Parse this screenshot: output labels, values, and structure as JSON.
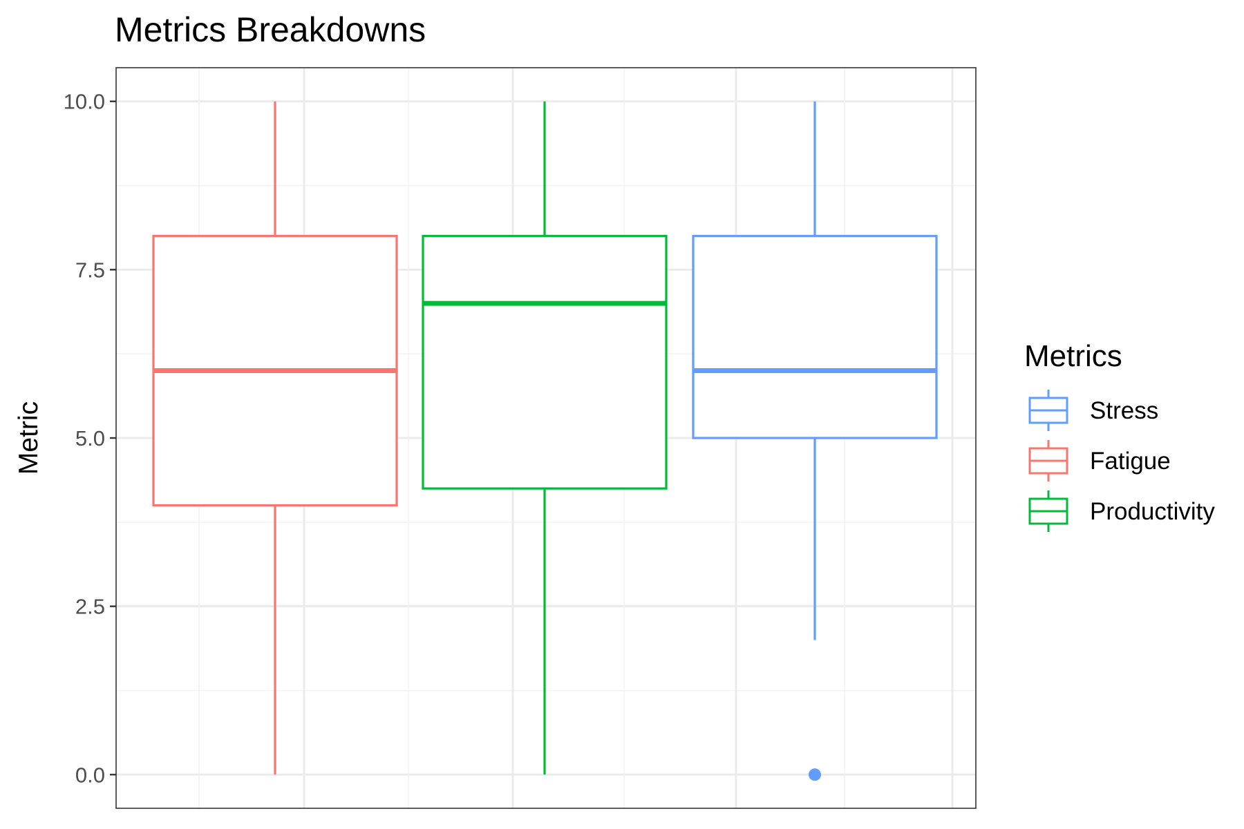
{
  "chart_data": {
    "type": "box",
    "title": "Metrics Breakdowns",
    "xlabel": "",
    "ylabel": "Metric",
    "ylim": [
      -0.5,
      10.5
    ],
    "yticks": [
      0.0,
      2.5,
      5.0,
      7.5,
      10.0
    ],
    "ytick_labels": [
      "0.0",
      "2.5",
      "5.0",
      "7.5",
      "10.0"
    ],
    "grid": true,
    "x_tick_labels_visible": false,
    "legend": {
      "title": "Metrics",
      "position": "right",
      "entries": [
        {
          "label": "Stress",
          "color": "#619CFF"
        },
        {
          "label": "Fatigue",
          "color": "#F8766D"
        },
        {
          "label": "Productivity",
          "color": "#00BA38"
        }
      ]
    },
    "series": [
      {
        "name": "Fatigue",
        "color": "#F8766D",
        "min": 0,
        "q1": 4,
        "median": 6,
        "q3": 8,
        "max": 10,
        "outliers": []
      },
      {
        "name": "Productivity",
        "color": "#00BA38",
        "min": 0,
        "q1": 4.25,
        "median": 7,
        "q3": 8,
        "max": 10,
        "outliers": []
      },
      {
        "name": "Stress",
        "color": "#619CFF",
        "min": 2,
        "q1": 5,
        "median": 6,
        "q3": 8,
        "max": 10,
        "outliers": [
          0
        ]
      }
    ]
  }
}
